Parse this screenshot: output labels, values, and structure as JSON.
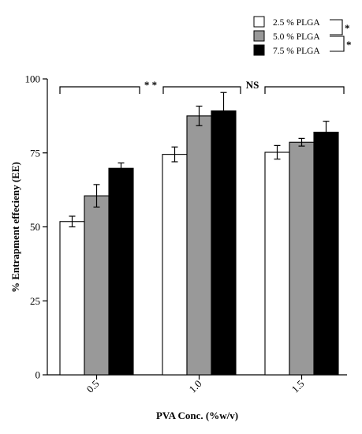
{
  "chart_data": {
    "type": "bar",
    "categories": [
      "0.5",
      "1.0",
      "1.5"
    ],
    "series": [
      {
        "name": "2.5 % PLGA",
        "color": "#ffffff",
        "values": [
          51.8,
          74.5,
          75.2
        ],
        "errors": [
          1.8,
          2.5,
          2.3
        ]
      },
      {
        "name": "5.0 % PLGA",
        "color": "#999999",
        "values": [
          60.5,
          87.5,
          78.6
        ],
        "errors": [
          3.8,
          3.3,
          1.3
        ]
      },
      {
        "name": "7.5 % PLGA",
        "color": "#000000",
        "values": [
          69.8,
          89.2,
          82.0
        ],
        "errors": [
          1.8,
          6.2,
          3.7
        ]
      }
    ],
    "xlabel": "PVA Conc. (%w/v)",
    "ylabel": "% Entrapment effecieny (EE)",
    "ylim": [
      0,
      100
    ],
    "yticks": [
      "0",
      "25",
      "50",
      "75",
      "100"
    ],
    "legend_position": "top-right",
    "significance": [
      {
        "label": "* *",
        "group": "0.5 vs 1.0"
      },
      {
        "label": "NS",
        "group": "1.0 vs 1.5"
      }
    ],
    "legend_significance": [
      "*",
      "*"
    ]
  }
}
